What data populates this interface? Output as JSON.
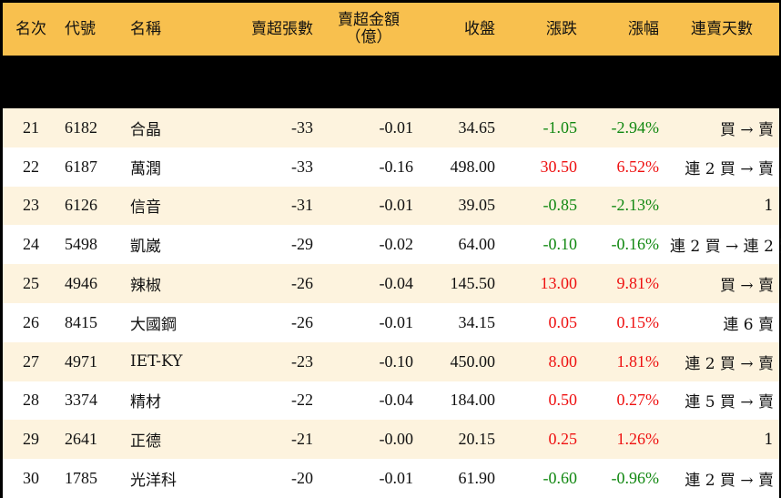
{
  "headers": {
    "rank": "名次",
    "code": "代號",
    "name": "名稱",
    "net_sell_lots": "賣超張數",
    "net_sell_amount": "賣超金額",
    "net_sell_amount_unit": "（億）",
    "close": "收盤",
    "change": "漲跌",
    "change_pct": "漲幅",
    "streak": "連賣天數"
  },
  "colors": {
    "header_bg": "#F8C04E",
    "row_odd": "#FDF3DE",
    "row_even": "#FFFFFF",
    "up": "#EE1111",
    "down": "#118811"
  },
  "rows": [
    {
      "rank": "21",
      "code": "6182",
      "name": "合晶",
      "lots": "-33",
      "amount": "-0.01",
      "close": "34.65",
      "change": "-1.05",
      "pct": "-2.94%",
      "dir": "down",
      "streak": "買 → 賣"
    },
    {
      "rank": "22",
      "code": "6187",
      "name": "萬潤",
      "lots": "-33",
      "amount": "-0.16",
      "close": "498.00",
      "change": "30.50",
      "pct": "6.52%",
      "dir": "up",
      "streak": "連 2 買 → 賣"
    },
    {
      "rank": "23",
      "code": "6126",
      "name": "信音",
      "lots": "-31",
      "amount": "-0.01",
      "close": "39.05",
      "change": "-0.85",
      "pct": "-2.13%",
      "dir": "down",
      "streak": "1"
    },
    {
      "rank": "24",
      "code": "5498",
      "name": "凱崴",
      "lots": "-29",
      "amount": "-0.02",
      "close": "64.00",
      "change": "-0.10",
      "pct": "-0.16%",
      "dir": "down",
      "streak": "連 2 買 → 連 2 賣"
    },
    {
      "rank": "25",
      "code": "4946",
      "name": "辣椒",
      "lots": "-26",
      "amount": "-0.04",
      "close": "145.50",
      "change": "13.00",
      "pct": "9.81%",
      "dir": "up",
      "streak": "買 → 賣"
    },
    {
      "rank": "26",
      "code": "8415",
      "name": "大國鋼",
      "lots": "-26",
      "amount": "-0.01",
      "close": "34.15",
      "change": "0.05",
      "pct": "0.15%",
      "dir": "up",
      "streak": "連 6 賣"
    },
    {
      "rank": "27",
      "code": "4971",
      "name": "IET-KY",
      "lots": "-23",
      "amount": "-0.10",
      "close": "450.00",
      "change": "8.00",
      "pct": "1.81%",
      "dir": "up",
      "streak": "連 2 買 → 賣"
    },
    {
      "rank": "28",
      "code": "3374",
      "name": "精材",
      "lots": "-22",
      "amount": "-0.04",
      "close": "184.00",
      "change": "0.50",
      "pct": "0.27%",
      "dir": "up",
      "streak": "連 5 買 → 賣"
    },
    {
      "rank": "29",
      "code": "2641",
      "name": "正德",
      "lots": "-21",
      "amount": "-0.00",
      "close": "20.15",
      "change": "0.25",
      "pct": "1.26%",
      "dir": "up",
      "streak": "1"
    },
    {
      "rank": "30",
      "code": "1785",
      "name": "光洋科",
      "lots": "-20",
      "amount": "-0.01",
      "close": "61.90",
      "change": "-0.60",
      "pct": "-0.96%",
      "dir": "down",
      "streak": "連 2 買 → 賣"
    }
  ]
}
